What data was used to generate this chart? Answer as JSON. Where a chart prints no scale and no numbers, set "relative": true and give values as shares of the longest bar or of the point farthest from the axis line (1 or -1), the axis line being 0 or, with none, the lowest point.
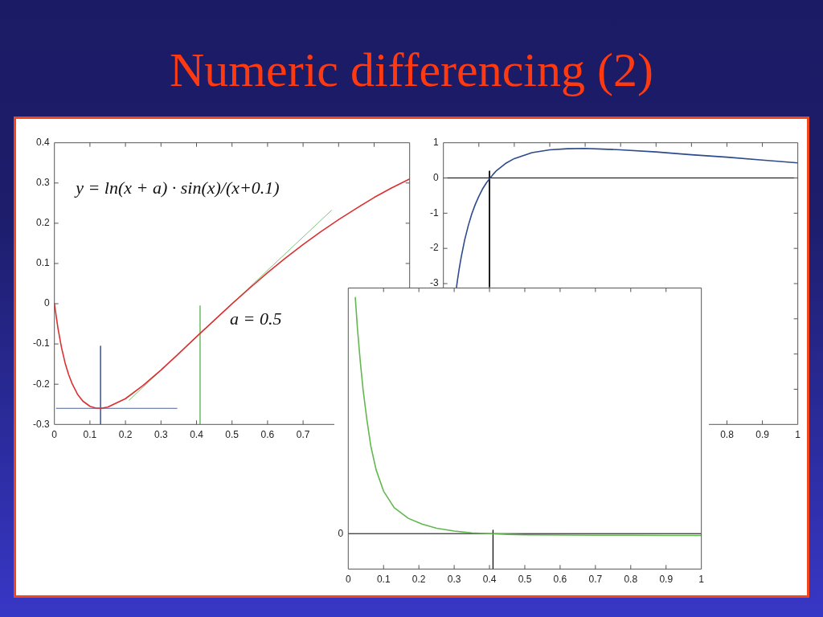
{
  "chart_data": [
    {
      "type": "line",
      "title": "Numeric differencing (2)",
      "annotations": [
        "y = ln(x + a) · sin(x)/(x+0.1)",
        "a = 0.5"
      ],
      "xlim": [
        0,
        1
      ],
      "ylim": [
        -0.3,
        0.4
      ],
      "xticks": [
        0,
        0.1,
        0.2,
        0.3,
        0.4,
        0.5,
        0.6,
        0.7,
        {
          "value": 0.8,
          "label": null
        },
        {
          "value": 0.9,
          "label": null
        }
      ],
      "yticks": [
        -0.3,
        -0.2,
        -0.1,
        0,
        0.1,
        0.2,
        0.3,
        0.4
      ],
      "marker": "none",
      "series": [
        {
          "color": "#dc3030",
          "x": [
            0,
            0.01,
            0.02,
            0.03,
            0.04,
            0.05,
            0.065,
            0.08,
            0.1,
            0.115,
            0.13,
            0.15,
            0.2,
            0.25,
            0.3,
            0.35,
            0.4,
            0.45,
            0.5,
            0.55,
            0.6,
            0.65,
            0.7,
            0.75,
            0.8,
            0.85,
            0.9,
            0.95,
            1
          ],
          "values": [
            0,
            -0.061,
            -0.109,
            -0.147,
            -0.176,
            -0.199,
            -0.225,
            -0.242,
            -0.255,
            -0.259,
            -0.26,
            -0.257,
            -0.236,
            -0.203,
            -0.165,
            -0.124,
            -0.082,
            -0.041,
            0,
            0.039,
            0.077,
            0.113,
            0.147,
            0.179,
            0.209,
            0.237,
            0.264,
            0.288,
            0.31
          ]
        },
        {
          "color": "#4d6499",
          "x": [
            0.13,
            0.13
          ],
          "values": [
            -0.105,
            -0.3
          ]
        },
        {
          "color": "#4d6499",
          "x": [
            0.005,
            0.345
          ],
          "values": [
            -0.26,
            -0.26
          ]
        },
        {
          "color": "#7dc47a",
          "x": [
            0.41,
            0.41
          ],
          "values": [
            -0.005,
            -0.3
          ]
        },
        {
          "color": "#7dc47a",
          "x": [
            0.21,
            0.78
          ],
          "values": [
            -0.24,
            0.232
          ]
        }
      ]
    },
    {
      "type": "line",
      "xlim": [
        0,
        1
      ],
      "ylim": [
        -7,
        1
      ],
      "xticks": [
        {
          "value": 0.1,
          "label": null
        },
        {
          "value": 0.2,
          "label": null
        },
        {
          "value": 0.3,
          "label": null
        },
        {
          "value": 0.4,
          "label": null
        },
        {
          "value": 0.5,
          "label": null
        },
        {
          "value": 0.6,
          "label": null
        },
        {
          "value": 0.7,
          "label": null
        },
        0.8,
        0.9,
        1
      ],
      "yticks": [
        {
          "value": -6,
          "label": null
        },
        {
          "value": -5,
          "label": null
        },
        {
          "value": -4,
          "label": null
        },
        -3,
        -2,
        -1,
        0,
        1
      ],
      "marker": "none",
      "ref_lines": [
        {
          "axis": "y",
          "value": 0,
          "color": "#000000"
        }
      ],
      "series": [
        {
          "color": "#2c4a8c",
          "x": [
            0.037,
            0.04,
            0.045,
            0.05,
            0.06,
            0.07,
            0.08,
            0.09,
            0.1,
            0.11,
            0.12,
            0.13,
            0.14,
            0.15,
            0.175,
            0.2,
            0.25,
            0.3,
            0.35,
            0.4,
            0.45,
            0.5,
            0.6,
            0.7,
            0.8,
            0.9,
            1
          ],
          "values": [
            -3.1,
            -2.88,
            -2.55,
            -2.26,
            -1.76,
            -1.36,
            -1.02,
            -0.75,
            -0.52,
            -0.32,
            -0.16,
            -0.02,
            0.1,
            0.21,
            0.41,
            0.55,
            0.72,
            0.8,
            0.83,
            0.84,
            0.82,
            0.8,
            0.74,
            0.66,
            0.59,
            0.51,
            0.43
          ]
        },
        {
          "color": "#000000",
          "x": [
            0.13,
            0.13
          ],
          "values": [
            0.2,
            -3.1
          ]
        }
      ]
    },
    {
      "type": "line",
      "relative": true,
      "xlim": [
        0,
        1
      ],
      "xticks": [
        0,
        0.1,
        0.2,
        0.3,
        0.4,
        0.5,
        0.6,
        0.7,
        0.8,
        0.9,
        1
      ],
      "marker": "none",
      "ref_lines": [
        {
          "axis": "y",
          "value": 0,
          "label": "0",
          "color": "#000000"
        }
      ],
      "series": [
        {
          "color": "#62b84f",
          "x": [
            0.02,
            0.026,
            0.034,
            0.042,
            0.053,
            0.064,
            0.079,
            0.1,
            0.13,
            0.17,
            0.21,
            0.25,
            0.3,
            0.35,
            0.4,
            0.45,
            0.5,
            0.6,
            0.7,
            0.8,
            0.9,
            1
          ],
          "values": [
            1,
            0.87,
            0.73,
            0.61,
            0.48,
            0.37,
            0.27,
            0.18,
            0.11,
            0.065,
            0.04,
            0.023,
            0.011,
            0.003,
            0,
            -0.003,
            -0.005,
            -0.006,
            -0.007,
            -0.007,
            -0.008,
            -0.008
          ]
        },
        {
          "color": "#000000",
          "x": [
            0.41,
            0.41
          ],
          "values": [
            0.015,
            -0.15
          ]
        }
      ]
    }
  ]
}
